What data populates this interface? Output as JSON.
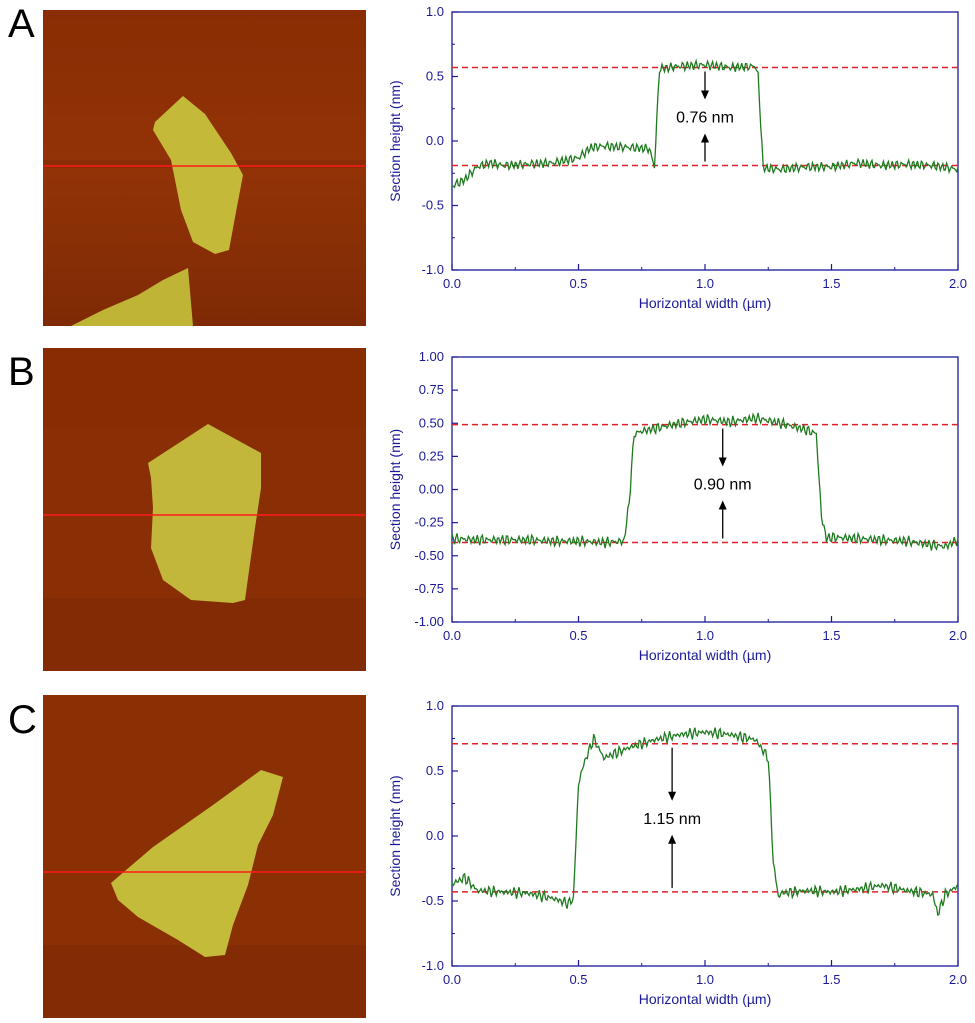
{
  "figure": {
    "panel_labels": [
      "A",
      "B",
      "C"
    ]
  },
  "colors": {
    "axis": "#1a1a99",
    "trace": "#1f7a1f",
    "reference": "#e0202a",
    "afm_background": "#8c2f05",
    "afm_flake": "#c9c23c",
    "scan_line": "#ff1a1a"
  },
  "chart_data": [
    {
      "type": "line",
      "panel": "A",
      "xlabel": "Horizontal width (µm)",
      "ylabel": "Section height (nm)",
      "xlim": [
        0,
        2.0
      ],
      "ylim": [
        -1.0,
        1.0
      ],
      "xticks": [
        "0.0",
        "0.5",
        "1.0",
        "1.5",
        "2.0"
      ],
      "yticks": [
        "-1.0",
        "-0.5",
        "0.0",
        "0.5",
        "1.0"
      ],
      "grid": false,
      "reference_lines": [
        0.57,
        -0.19
      ],
      "annotation": {
        "text": "0.76 nm",
        "x": 1.0
      },
      "profile": {
        "x": [
          0.0,
          0.05,
          0.1,
          0.15,
          0.2,
          0.3,
          0.4,
          0.5,
          0.55,
          0.6,
          0.7,
          0.78,
          0.8,
          0.82,
          0.9,
          1.0,
          1.1,
          1.2,
          1.21,
          1.23,
          1.3,
          1.4,
          1.5,
          1.6,
          1.7,
          1.8,
          1.9,
          2.0
        ],
        "y": [
          -0.35,
          -0.3,
          -0.2,
          -0.17,
          -0.19,
          -0.18,
          -0.17,
          -0.13,
          -0.05,
          -0.04,
          -0.05,
          -0.06,
          -0.2,
          0.56,
          0.58,
          0.59,
          0.57,
          0.58,
          0.5,
          -0.21,
          -0.22,
          -0.2,
          -0.2,
          -0.17,
          -0.19,
          -0.18,
          -0.19,
          -0.22
        ]
      }
    },
    {
      "type": "line",
      "panel": "B",
      "xlabel": "Horizontal width (µm)",
      "ylabel": "Section height (nm)",
      "xlim": [
        0,
        2.0
      ],
      "ylim": [
        -1.0,
        1.0
      ],
      "xticks": [
        "0.0",
        "0.5",
        "1.0",
        "1.5",
        "2.0"
      ],
      "yticks": [
        "-1.00",
        "-0.75",
        "-0.50",
        "-0.25",
        "0.00",
        "0.25",
        "0.50",
        "0.75",
        "1.00"
      ],
      "grid": false,
      "reference_lines": [
        0.49,
        -0.4
      ],
      "annotation": {
        "text": "0.90 nm",
        "x": 1.07
      },
      "profile": {
        "x": [
          0.0,
          0.1,
          0.2,
          0.3,
          0.4,
          0.5,
          0.6,
          0.68,
          0.7,
          0.72,
          0.75,
          0.8,
          0.9,
          1.0,
          1.1,
          1.2,
          1.3,
          1.4,
          1.44,
          1.46,
          1.48,
          1.5,
          1.6,
          1.7,
          1.8,
          1.9,
          1.95,
          2.0
        ],
        "y": [
          -0.37,
          -0.38,
          -0.38,
          -0.38,
          -0.39,
          -0.39,
          -0.4,
          -0.39,
          -0.1,
          0.42,
          0.44,
          0.46,
          0.5,
          0.53,
          0.51,
          0.54,
          0.5,
          0.45,
          0.42,
          -0.2,
          -0.37,
          -0.36,
          -0.37,
          -0.38,
          -0.39,
          -0.42,
          -0.43,
          -0.38
        ]
      }
    },
    {
      "type": "line",
      "panel": "C",
      "xlabel": "Horizontal width (µm)",
      "ylabel": "Section height (nm)",
      "xlim": [
        0,
        2.0
      ],
      "ylim": [
        -1.0,
        1.0
      ],
      "xticks": [
        "0.0",
        "0.5",
        "1.0",
        "1.5",
        "2.0"
      ],
      "yticks": [
        "-1.0",
        "-0.5",
        "0.0",
        "0.5",
        "1.0"
      ],
      "grid": false,
      "reference_lines": [
        0.71,
        -0.43
      ],
      "annotation": {
        "text": "1.15 nm",
        "x": 0.87
      },
      "profile": {
        "x": [
          0.0,
          0.05,
          0.1,
          0.2,
          0.3,
          0.4,
          0.46,
          0.48,
          0.5,
          0.52,
          0.56,
          0.6,
          0.7,
          0.8,
          0.9,
          1.0,
          1.1,
          1.2,
          1.25,
          1.27,
          1.29,
          1.3,
          1.4,
          1.5,
          1.6,
          1.7,
          1.8,
          1.9,
          1.92,
          1.95,
          2.0
        ],
        "y": [
          -0.37,
          -0.32,
          -0.42,
          -0.43,
          -0.44,
          -0.48,
          -0.52,
          -0.48,
          0.4,
          0.55,
          0.75,
          0.6,
          0.68,
          0.74,
          0.78,
          0.8,
          0.78,
          0.74,
          0.6,
          -0.2,
          -0.47,
          -0.44,
          -0.42,
          -0.43,
          -0.41,
          -0.38,
          -0.42,
          -0.45,
          -0.6,
          -0.45,
          -0.38
        ]
      }
    }
  ]
}
